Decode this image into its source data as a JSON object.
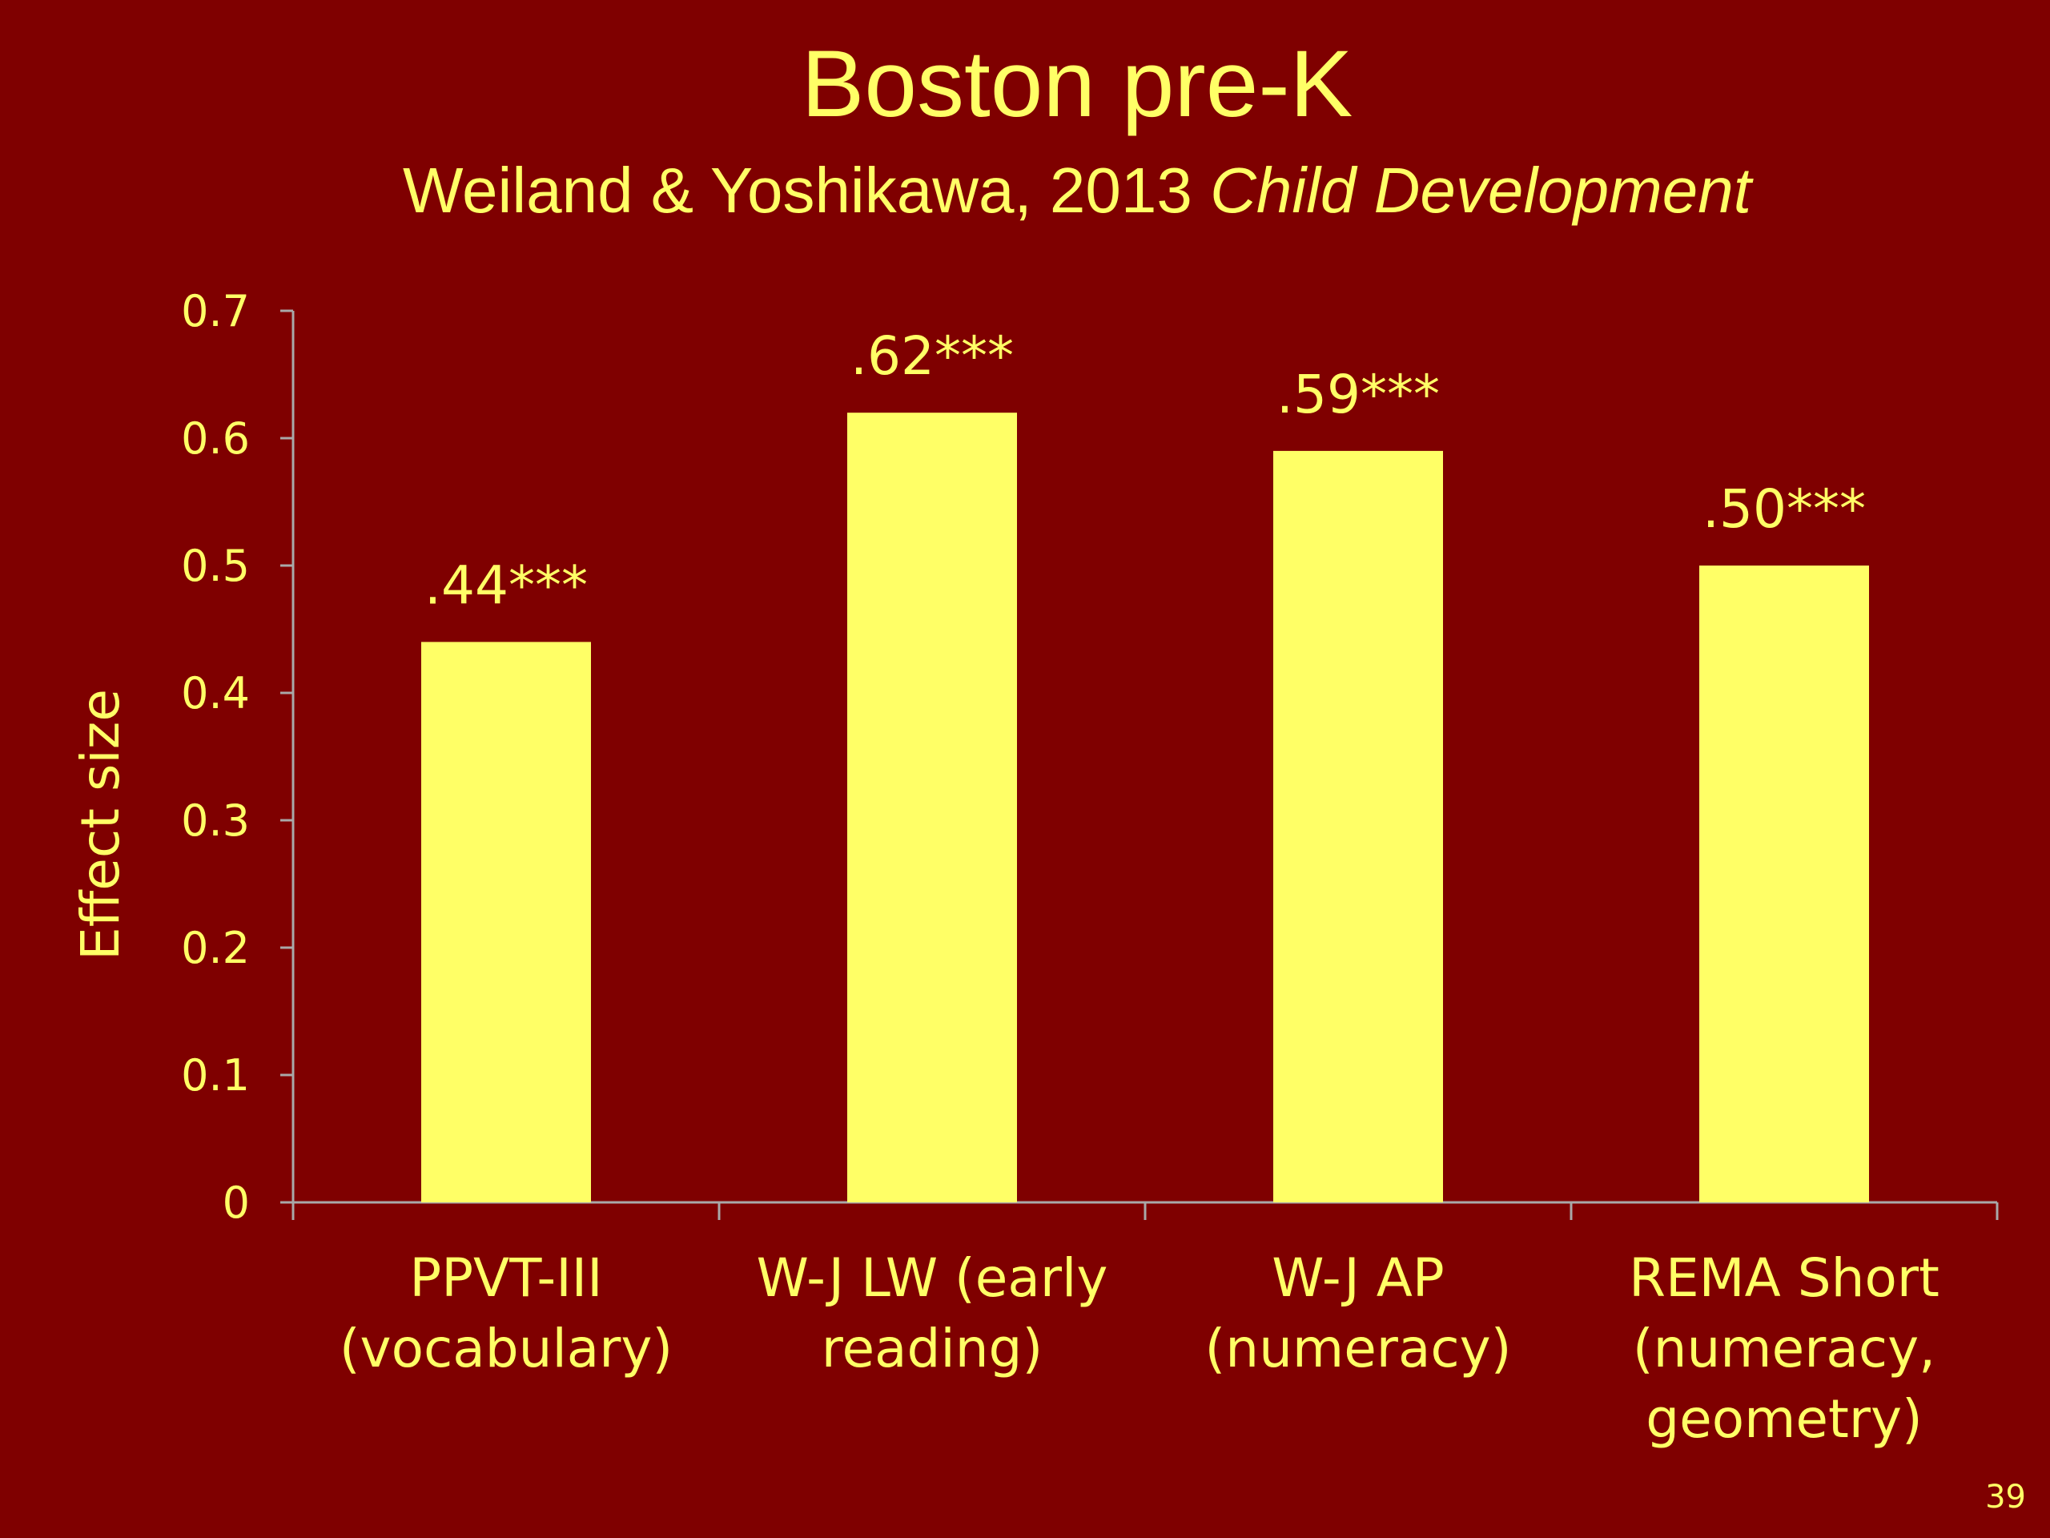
{
  "slide": {
    "title": "Boston pre-K",
    "subtitle_plain": "Weiland & Yoshikawa, 2013 ",
    "subtitle_italic": "Child Development",
    "slide_number": "39"
  },
  "colors": {
    "background": "#7f0000",
    "bar": "#ffff66",
    "text": "#ffff66",
    "axis": "#a9a9a9"
  },
  "chart_data": {
    "type": "bar",
    "categories": [
      [
        "PPVT-III",
        "(vocabulary)"
      ],
      [
        "W-J LW (early",
        "reading)"
      ],
      [
        "W-J AP",
        "(numeracy)"
      ],
      [
        "REMA Short",
        "(numeracy,",
        "geometry)"
      ]
    ],
    "values": [
      0.44,
      0.62,
      0.59,
      0.5
    ],
    "data_labels": [
      ".44***",
      ".62***",
      ".59***",
      ".50***"
    ],
    "ylabel": "Effect size",
    "ylim": [
      0,
      0.7
    ],
    "yticks": [
      0,
      0.1,
      0.2,
      0.3,
      0.4,
      0.5,
      0.6,
      0.7
    ],
    "ytick_labels": [
      "0",
      "0.1",
      "0.2",
      "0.3",
      "0.4",
      "0.5",
      "0.6",
      "0.7"
    ],
    "grid": false,
    "legend": "none"
  }
}
